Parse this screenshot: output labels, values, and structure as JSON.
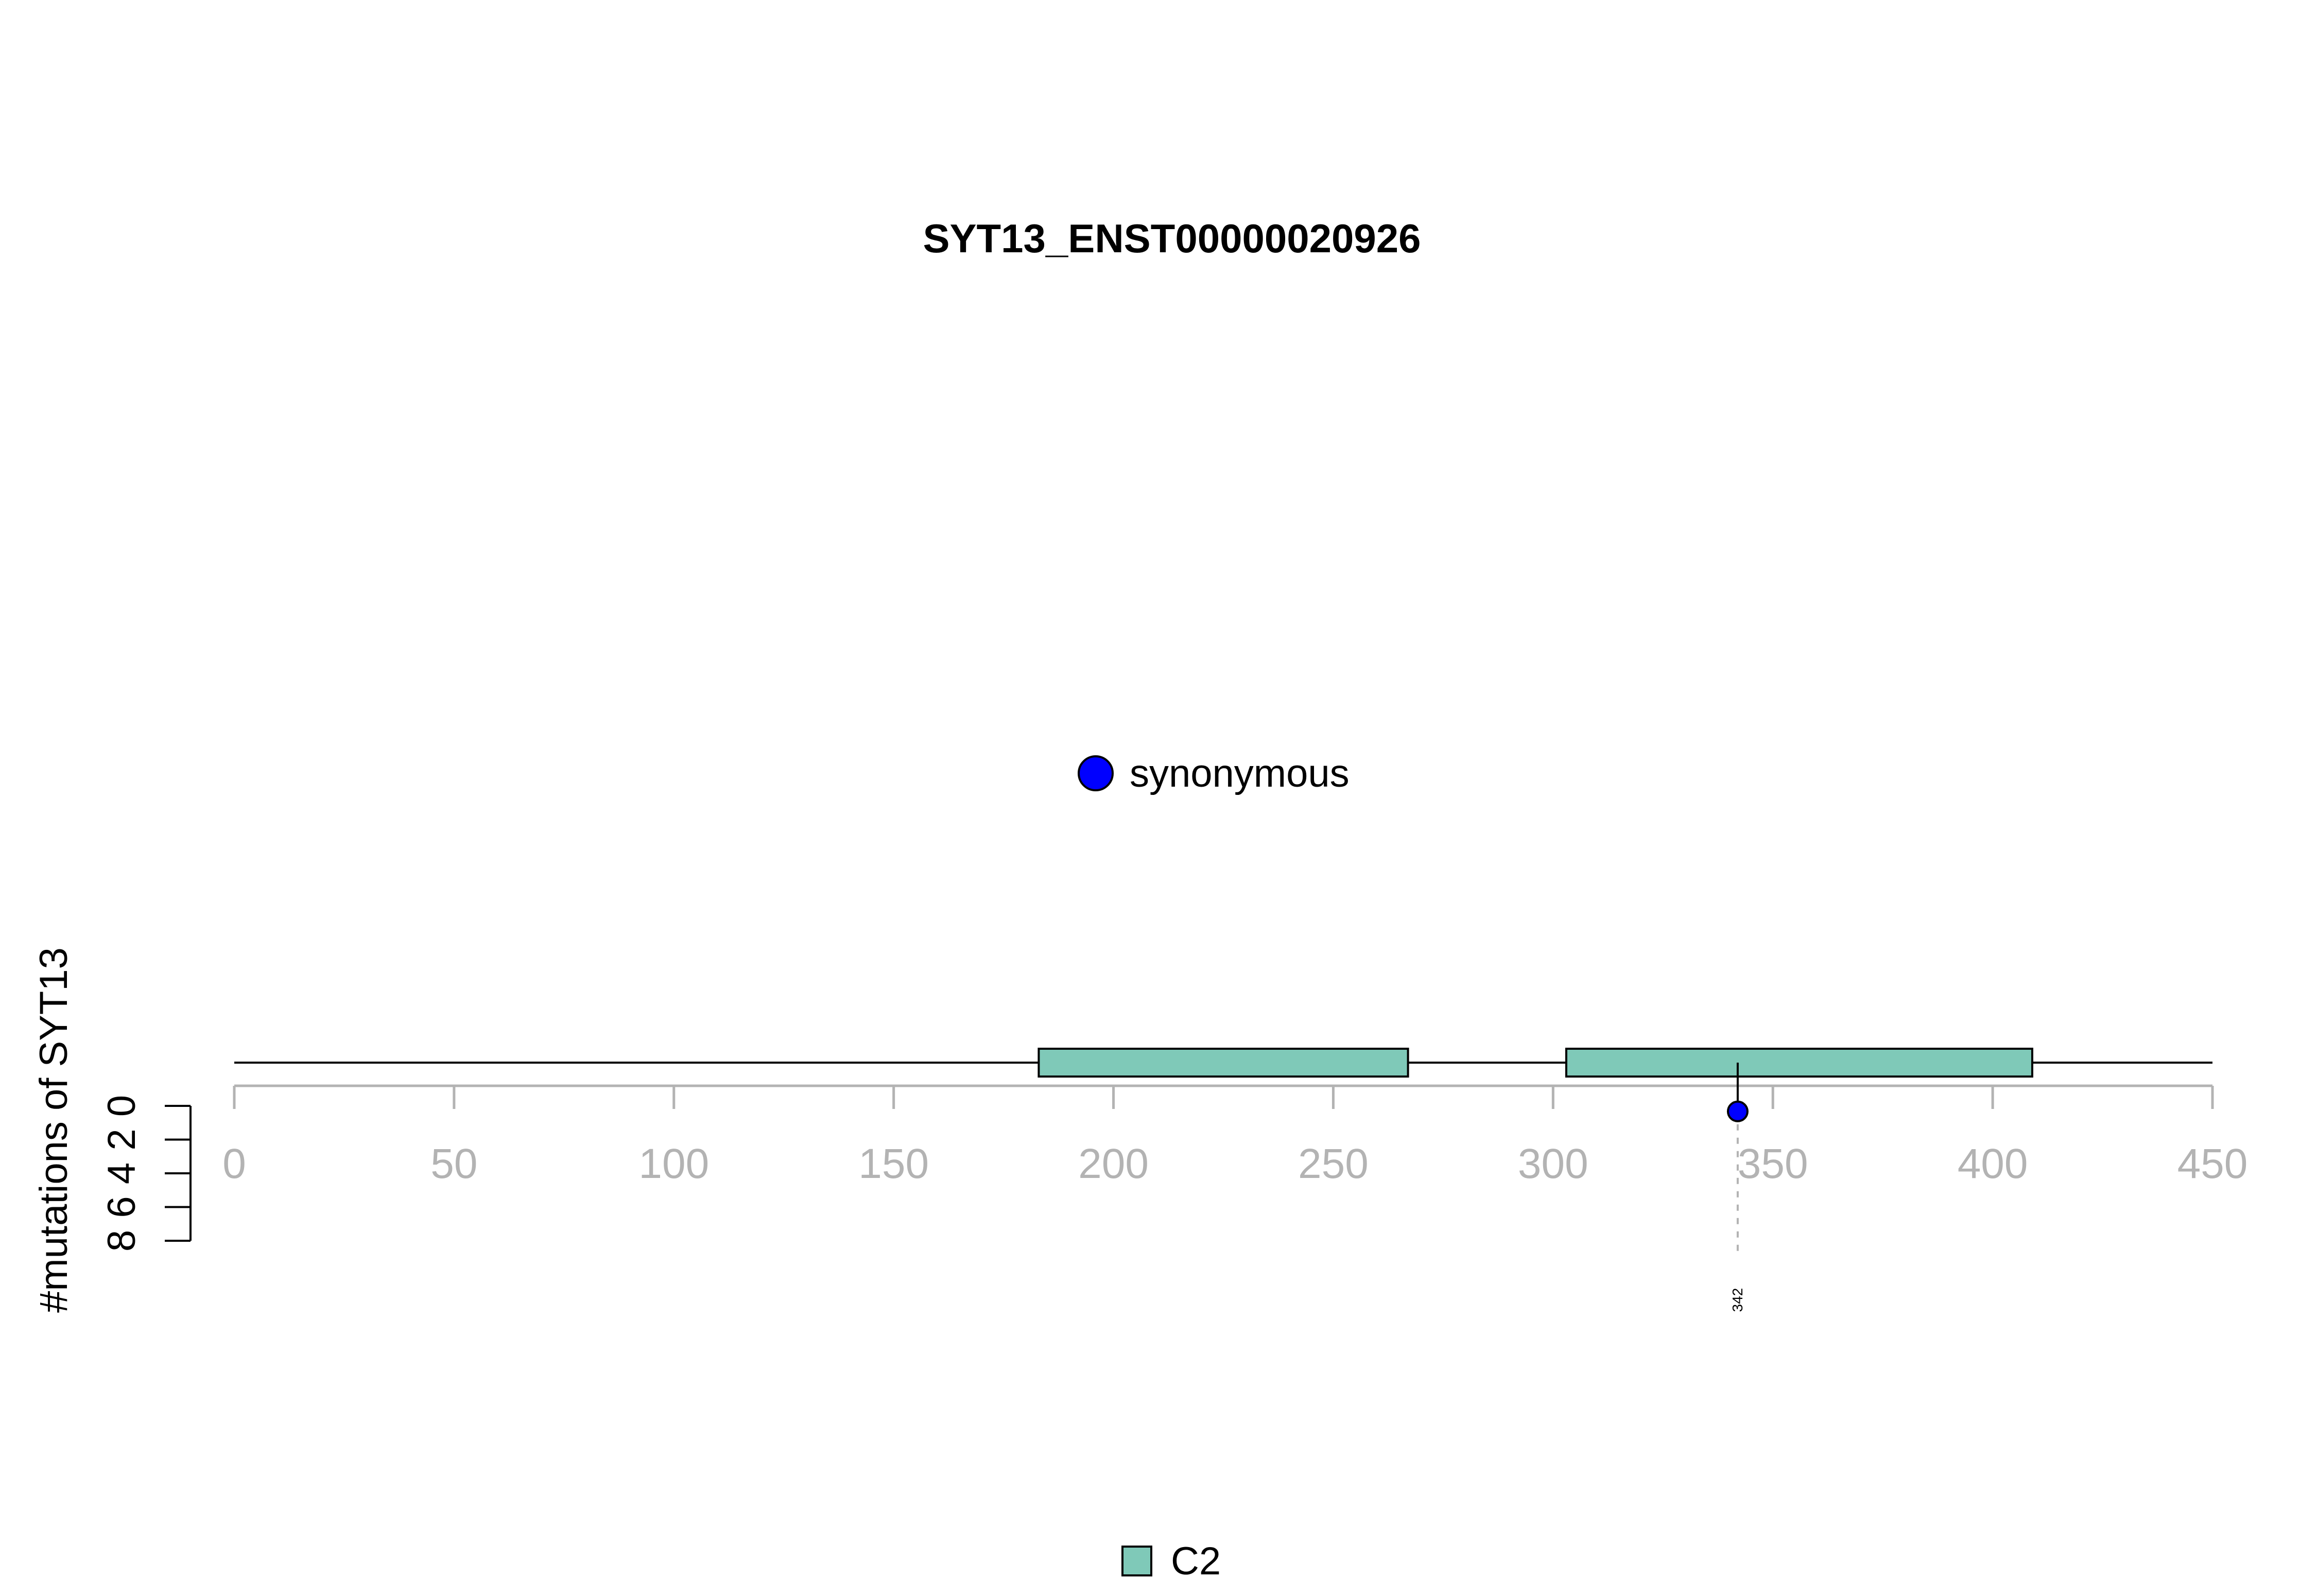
{
  "chart_data": {
    "type": "lollipop",
    "title": "SYT13_ENST00000020926",
    "ylabel": "#mutations of SYT13",
    "x_ticks": [
      "0",
      "50",
      "100",
      "150",
      "200",
      "250",
      "300",
      "350",
      "400",
      "450"
    ],
    "xlim": [
      0,
      450
    ],
    "y_ticks": [
      "0",
      "2",
      "4",
      "6",
      "8"
    ],
    "ylim": [
      0,
      8
    ],
    "protein_length": 450,
    "domains": [
      {
        "name": "C2",
        "start": 183,
        "end": 267
      },
      {
        "name": "C2",
        "start": 303,
        "end": 409
      }
    ],
    "mutations": [
      {
        "position": 342,
        "count": 1,
        "type": "synonymous",
        "label": "342"
      }
    ],
    "mutation_legend": [
      {
        "label": "synonymous",
        "color": "#0000ff"
      }
    ],
    "domain_legend": [
      {
        "label": "C2",
        "color": "#7fc9b8"
      }
    ],
    "colors": {
      "synonymous": "#0000ff",
      "domain": "#7fc9b8",
      "axis": "#b3b3b3",
      "backbone": "#000000"
    }
  }
}
